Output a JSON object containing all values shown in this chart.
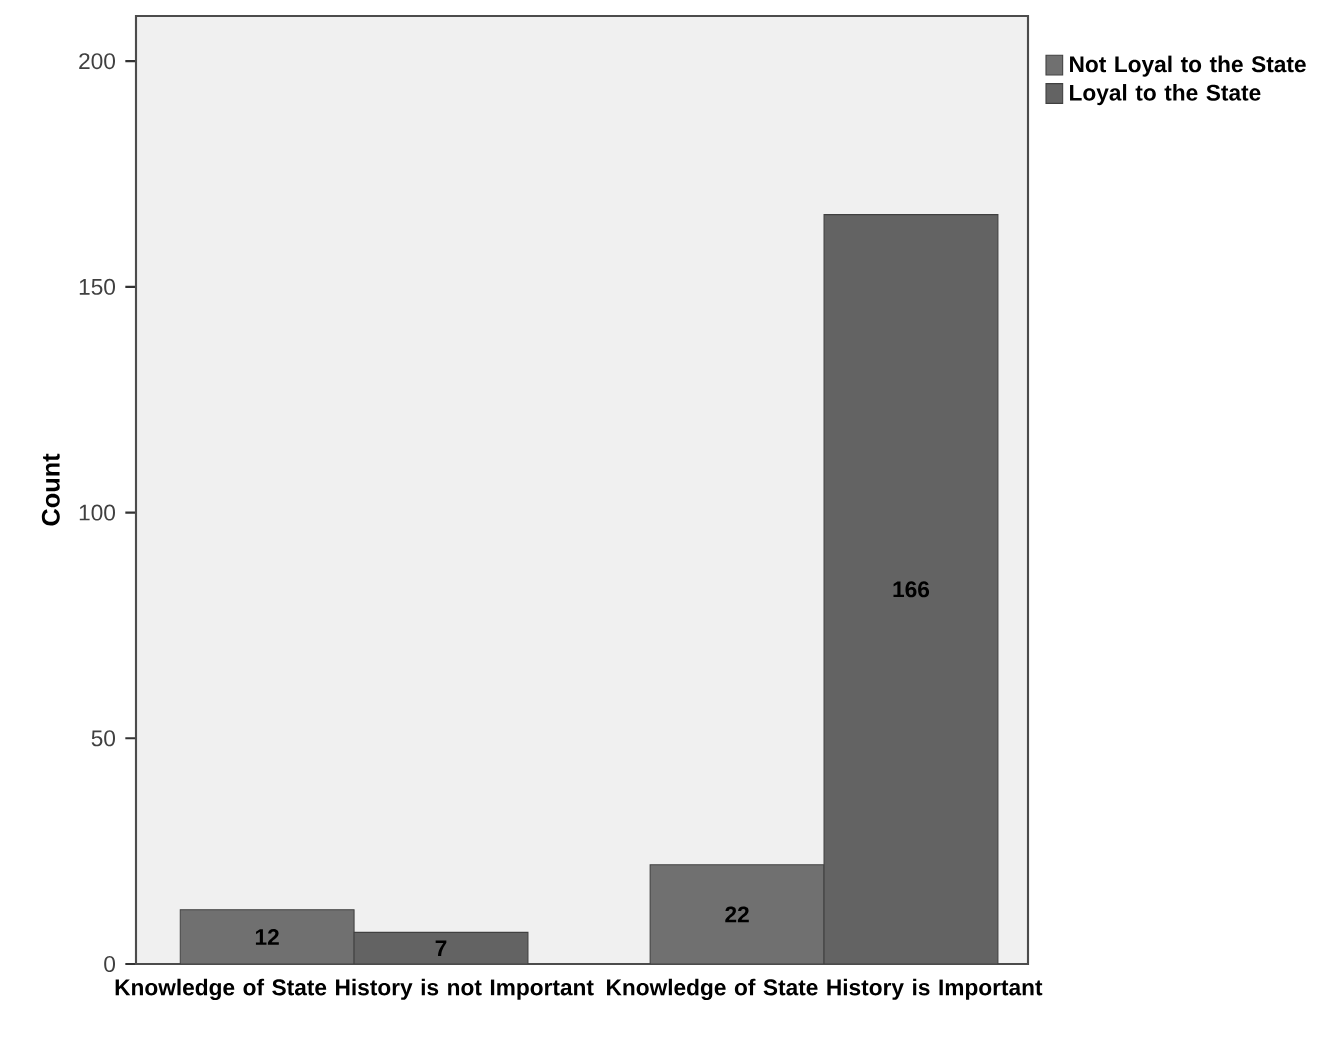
{
  "chart_data": {
    "type": "bar",
    "ylabel": "Count",
    "categories": [
      "Knowledge of State History is not Important",
      "Knowledge of State History is Important"
    ],
    "series": [
      {
        "name": "Not Loyal to the State",
        "color": "#707070",
        "values": [
          12,
          22
        ]
      },
      {
        "name": "Loyal to the State",
        "color": "#636363",
        "values": [
          7,
          166
        ]
      }
    ],
    "ylim": [
      0,
      210
    ],
    "yticks": [
      0,
      50,
      100,
      150,
      200
    ],
    "data_labels": true,
    "legend": "top right",
    "grid": false
  }
}
